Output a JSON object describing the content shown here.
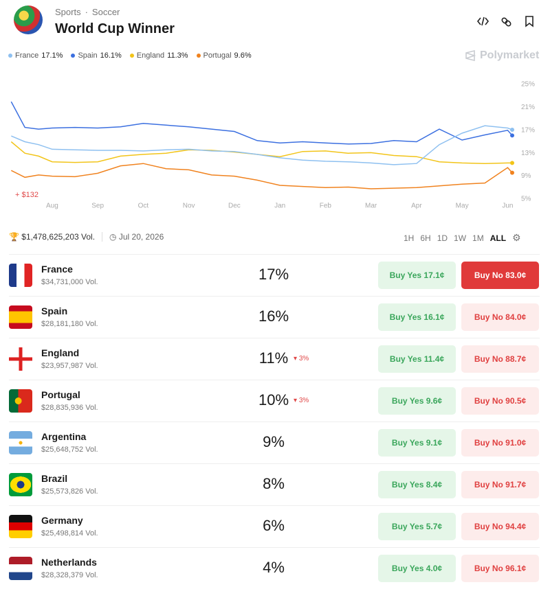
{
  "header": {
    "breadcrumb": [
      "Sports",
      "Soccer"
    ],
    "title": "World Cup Winner"
  },
  "brand": "Polymarket",
  "chart_data": {
    "type": "line",
    "x": [
      -0.9,
      -0.6,
      -0.3,
      0,
      0.5,
      1,
      1.5,
      2,
      2.5,
      3,
      3.5,
      4,
      4.5,
      5,
      5.5,
      6,
      6.5,
      7,
      7.5,
      8,
      8.5,
      9,
      9.5,
      10,
      10.1
    ],
    "xlim": [
      -0.95,
      10.1
    ],
    "xticks": [
      {
        "value": 0,
        "label": "Aug"
      },
      {
        "value": 1,
        "label": "Sep"
      },
      {
        "value": 2,
        "label": "Oct"
      },
      {
        "value": 3,
        "label": "Nov"
      },
      {
        "value": 4,
        "label": "Dec"
      },
      {
        "value": 5,
        "label": "Jan"
      },
      {
        "value": 6,
        "label": "Feb"
      },
      {
        "value": 7,
        "label": "Mar"
      },
      {
        "value": 8,
        "label": "Apr"
      },
      {
        "value": 9,
        "label": "May"
      },
      {
        "value": 10,
        "label": "Jun"
      }
    ],
    "ylim": [
      5,
      25
    ],
    "yticks": [
      {
        "value": 25,
        "label": "25%"
      },
      {
        "value": 21,
        "label": "21%"
      },
      {
        "value": 17,
        "label": "17%"
      },
      {
        "value": 13,
        "label": "13%"
      },
      {
        "value": 9,
        "label": "9%"
      },
      {
        "value": 5,
        "label": "5%"
      }
    ],
    "series": [
      {
        "name": "France",
        "legend_value": "17.1%",
        "color": "#8ec0f0",
        "values": [
          16,
          15,
          14.5,
          13.7,
          13.6,
          13.5,
          13.5,
          13.4,
          13.6,
          13.7,
          13.4,
          13.3,
          12.8,
          12.2,
          11.8,
          11.6,
          11.5,
          11.3,
          11.0,
          11.2,
          14.5,
          16.5,
          17.8,
          17.4,
          17.1
        ]
      },
      {
        "name": "Spain",
        "legend_value": "16.1%",
        "color": "#3b6fe0",
        "values": [
          22,
          17.5,
          17.2,
          17.4,
          17.5,
          17.4,
          17.6,
          18.2,
          17.9,
          17.6,
          17.2,
          16.8,
          15.2,
          14.8,
          15.0,
          14.8,
          14.6,
          14.7,
          15.2,
          15.0,
          17.2,
          15.3,
          16.2,
          17.0,
          16.1
        ]
      },
      {
        "name": "England",
        "legend_value": "11.3%",
        "color": "#f2c418",
        "values": [
          15,
          13,
          12.5,
          11.5,
          11.4,
          11.5,
          12.5,
          12.8,
          13.0,
          13.6,
          13.5,
          13.2,
          12.8,
          12.4,
          13.3,
          13.4,
          13.0,
          13.1,
          12.6,
          12.4,
          11.5,
          11.3,
          11.2,
          11.3,
          11.3
        ]
      },
      {
        "name": "Portugal",
        "legend_value": "9.6%",
        "color": "#f0821e",
        "values": [
          10,
          8.8,
          9.2,
          9.0,
          8.9,
          9.5,
          10.8,
          11.2,
          10.3,
          10.1,
          9.2,
          9.0,
          8.3,
          7.4,
          7.2,
          7.0,
          7.1,
          6.8,
          6.9,
          7.0,
          7.3,
          7.6,
          7.8,
          10.5,
          9.6
        ]
      }
    ],
    "annotation": "+ $132"
  },
  "stats": {
    "volume": "$1,478,625,203 Vol.",
    "date": "Jul 20, 2026"
  },
  "ranges": [
    "1H",
    "6H",
    "1D",
    "1W",
    "1M",
    "ALL"
  ],
  "table": {
    "rows": [
      {
        "name": "France",
        "volume": "$34,731,000 Vol.",
        "chance": "17%",
        "yes": "Buy Yes 17.1¢",
        "no": "Buy No 83.0¢"
      },
      {
        "name": "Spain",
        "volume": "$28,181,180 Vol.",
        "chance": "16%",
        "yes": "Buy Yes 16.1¢",
        "no": "Buy No 84.0¢"
      },
      {
        "name": "England",
        "volume": "$23,957,987 Vol.",
        "chance": "11%",
        "change": "3%",
        "yes": "Buy Yes 11.4¢",
        "no": "Buy No 88.7¢"
      },
      {
        "name": "Portugal",
        "volume": "$28,835,936 Vol.",
        "chance": "10%",
        "change": "3%",
        "yes": "Buy Yes 9.6¢",
        "no": "Buy No 90.5¢"
      },
      {
        "name": "Argentina",
        "volume": "$25,648,752 Vol.",
        "chance": "9%",
        "yes": "Buy Yes 9.1¢",
        "no": "Buy No 91.0¢"
      },
      {
        "name": "Brazil",
        "volume": "$25,573,826 Vol.",
        "chance": "8%",
        "yes": "Buy Yes 8.4¢",
        "no": "Buy No 91.7¢"
      },
      {
        "name": "Germany",
        "volume": "$25,498,814 Vol.",
        "chance": "6%",
        "yes": "Buy Yes 5.7¢",
        "no": "Buy No 94.4¢"
      },
      {
        "name": "Netherlands",
        "volume": "$28,328,379 Vol.",
        "chance": "4%",
        "yes": "Buy Yes 4.0¢",
        "no": "Buy No 96.1¢"
      }
    ]
  }
}
